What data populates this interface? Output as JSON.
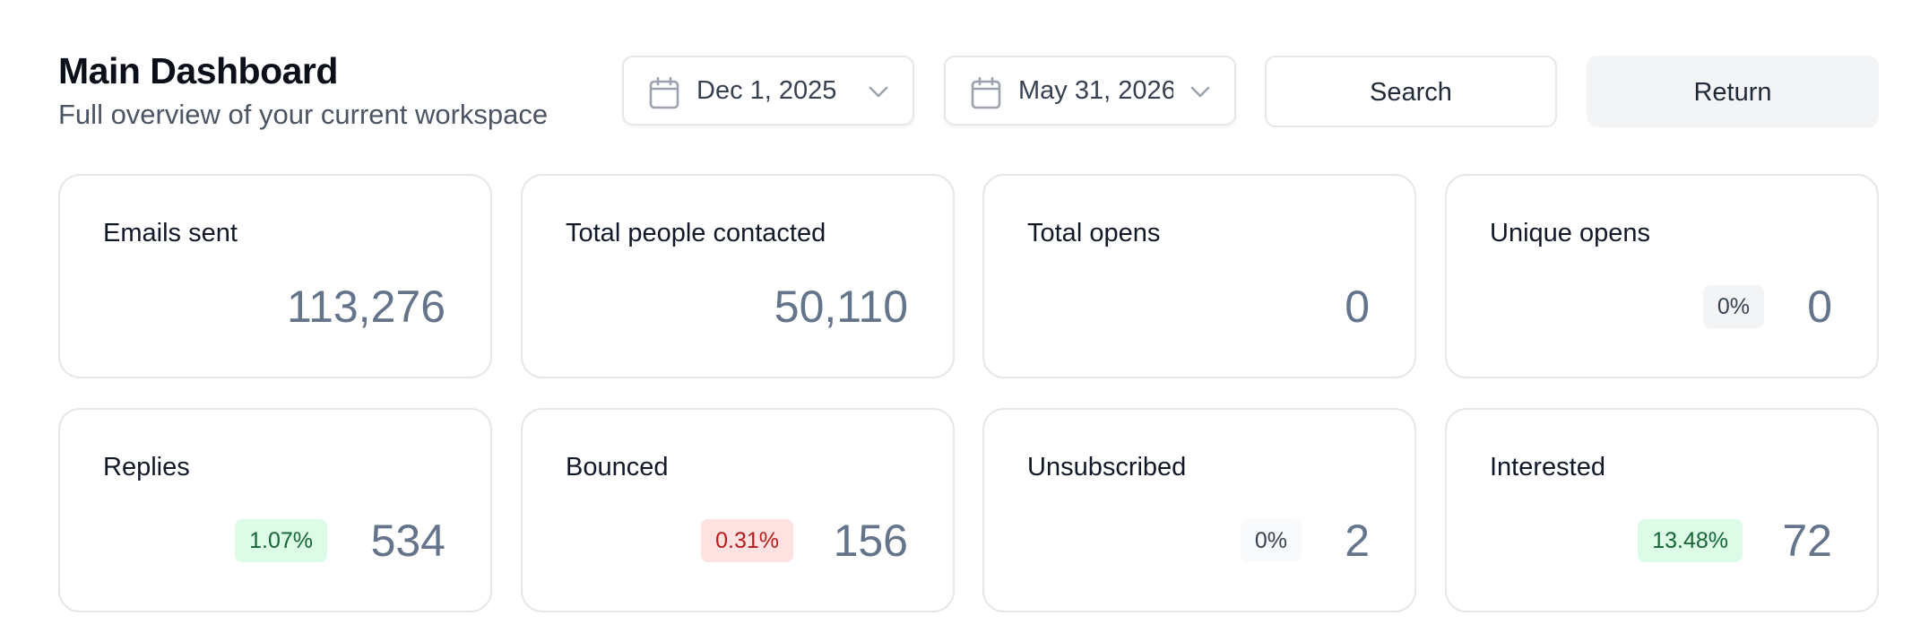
{
  "header": {
    "title": "Main Dashboard",
    "subtitle": "Full overview of your current workspace"
  },
  "filters": {
    "start_date": {
      "value": "Dec 1, 2025",
      "icon": "calendar-icon"
    },
    "end_date": {
      "value": "May 31, 2026",
      "icon": "calendar-icon"
    },
    "search_label": "Search",
    "return_label": "Return"
  },
  "stats": {
    "emails_sent": {
      "label": "Emails sent",
      "value": "113,276"
    },
    "people_contacted": {
      "label": "Total people contacted",
      "value": "50,110"
    },
    "total_opens": {
      "label": "Total opens",
      "value": "0"
    },
    "unique_opens": {
      "label": "Unique opens",
      "value": "0",
      "badge": "0%"
    },
    "replies": {
      "label": "Replies",
      "value": "534",
      "badge": "1.07%"
    },
    "bounced": {
      "label": "Bounced",
      "value": "156",
      "badge": "0.31%"
    },
    "unsubscribed": {
      "label": "Unsubscribed",
      "value": "2",
      "badge": "0%"
    },
    "interested": {
      "label": "Interested",
      "value": "72",
      "badge": "13.48%"
    }
  },
  "colors": {
    "badge_green_bg": "#dcfce7",
    "badge_green_text": "#166534",
    "badge_red_bg": "#fee2e2",
    "badge_red_text": "#b91c1c",
    "value_text": "#64748b"
  }
}
